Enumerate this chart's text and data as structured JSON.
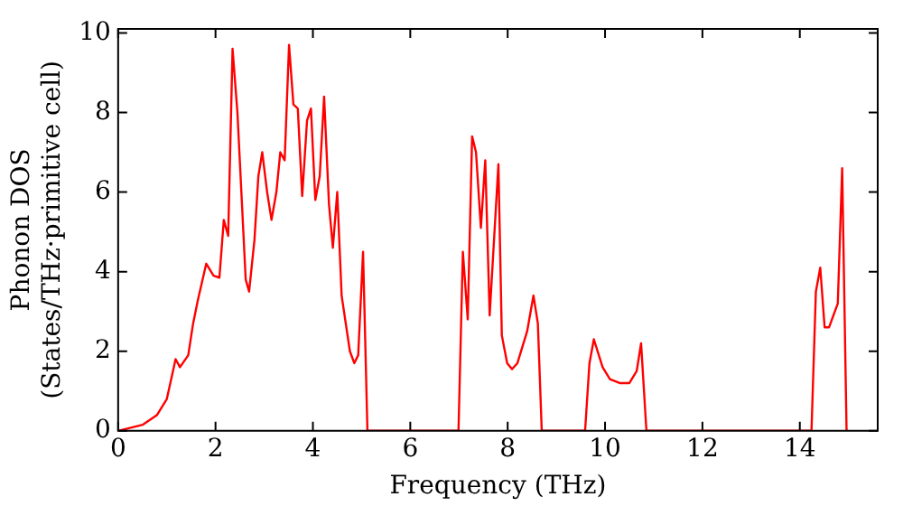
{
  "chart_data": {
    "type": "line",
    "xlabel": "Frequency (THz)",
    "ylabel": "Phonon DOS\n(States/THz·primitive cell)",
    "series": [
      {
        "color": "#ff0000",
        "x": [
          0,
          0.5,
          0.8,
          1.0,
          1.18,
          1.27,
          1.44,
          1.54,
          1.64,
          1.81,
          1.96,
          2.08,
          2.17,
          2.26,
          2.35,
          2.45,
          2.62,
          2.69,
          2.8,
          2.88,
          2.96,
          3.06,
          3.15,
          3.25,
          3.33,
          3.42,
          3.51,
          3.6,
          3.69,
          3.78,
          3.88,
          3.96,
          4.05,
          4.14,
          4.23,
          4.33,
          4.41,
          4.5,
          4.59,
          4.76,
          4.85,
          4.93,
          5.03,
          5.12,
          6.99,
          7.08,
          7.18,
          7.27,
          7.35,
          7.45,
          7.54,
          7.63,
          7.81,
          7.88,
          7.99,
          8.09,
          8.2,
          8.4,
          8.53,
          8.62,
          8.7,
          9.59,
          9.68,
          9.77,
          9.95,
          10.1,
          10.3,
          10.5,
          10.65,
          10.74,
          10.85,
          14.24,
          14.33,
          14.42,
          14.51,
          14.6,
          14.78,
          14.87,
          14.96
        ],
        "values": [
          0,
          0.15,
          0.4,
          0.8,
          1.8,
          1.6,
          1.9,
          2.7,
          3.3,
          4.2,
          3.9,
          3.85,
          5.3,
          4.9,
          9.6,
          8.0,
          3.8,
          3.5,
          4.8,
          6.4,
          7.0,
          6.0,
          5.3,
          6.0,
          7.0,
          6.8,
          9.7,
          8.2,
          8.1,
          5.9,
          7.8,
          8.1,
          5.8,
          6.4,
          8.4,
          5.7,
          4.6,
          6.0,
          3.4,
          2.0,
          1.7,
          1.9,
          4.5,
          0,
          0,
          4.5,
          2.8,
          7.4,
          7.0,
          5.1,
          6.8,
          2.9,
          6.7,
          2.4,
          1.7,
          1.55,
          1.7,
          2.5,
          3.4,
          2.7,
          0,
          0,
          1.7,
          2.3,
          1.6,
          1.3,
          1.2,
          1.2,
          1.5,
          2.2,
          0,
          0,
          3.5,
          4.1,
          2.6,
          2.6,
          3.2,
          6.6,
          0
        ]
      }
    ],
    "xlim": [
      0,
      15.6
    ],
    "xticks": [
      0,
      2,
      4,
      6,
      8,
      10,
      12,
      14
    ],
    "ylim": [
      0,
      10.1
    ],
    "yticks": [
      0,
      2,
      4,
      6,
      8,
      10
    ],
    "grid": false,
    "legend": false,
    "marker": "none",
    "line_style": "solid"
  }
}
